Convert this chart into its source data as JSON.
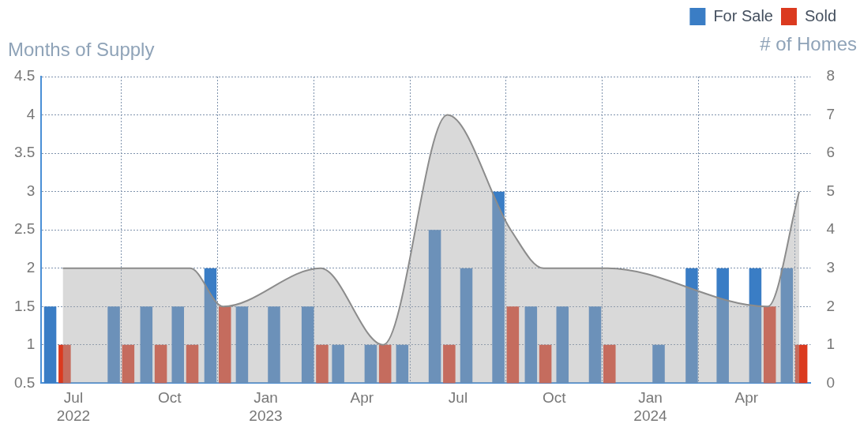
{
  "chart_data": {
    "type": "bar",
    "x": [
      "2022-06-16",
      "2022-07-16",
      "2022-08-16",
      "2022-09-16",
      "2022-10-16",
      "2022-11-16",
      "2022-12-16",
      "2023-01-16",
      "2023-02-16",
      "2023-03-16",
      "2023-04-16",
      "2023-05-16",
      "2023-06-16",
      "2023-07-16",
      "2023-08-16",
      "2023-09-16",
      "2023-10-16",
      "2023-11-16",
      "2023-12-16",
      "2024-01-16",
      "2024-02-16",
      "2024-03-16",
      "2024-04-16",
      "2024-05-16"
    ],
    "series": [
      {
        "name": "For Sale",
        "color": "#3a7dc5",
        "axis": "y2",
        "values": [
          2,
          0,
          2,
          2,
          2,
          3,
          2,
          2,
          2,
          1,
          1,
          1,
          4,
          3,
          5,
          2,
          2,
          2,
          0,
          1,
          3,
          3,
          3,
          3
        ]
      },
      {
        "name": "Sold",
        "color": "#db3a1f",
        "axis": "y2",
        "values": [
          1,
          0,
          1,
          1,
          1,
          2,
          0,
          0,
          1,
          0,
          1,
          0,
          1,
          0,
          2,
          1,
          0,
          1,
          0,
          0,
          0,
          0,
          2,
          1
        ]
      },
      {
        "type": "area",
        "color": "#8c8c8c",
        "x": [
          "2022-06-21",
          "2022-08-21",
          "2022-09-21",
          "2022-10-21",
          "2022-11-21",
          "2023-02-21",
          "2023-04-21",
          "2023-06-21",
          "2023-08-21",
          "2023-09-21",
          "2023-11-21",
          "2024-04-21",
          "2024-05-21"
        ],
        "values": [
          2,
          2,
          2,
          2,
          1.5,
          2,
          1,
          4,
          2.5,
          2,
          2,
          1.5,
          3
        ]
      }
    ],
    "xlim": [
      "2022-06",
      "2024-06"
    ],
    "xticks": [
      {
        "value": "2022-07",
        "label": "Jul\n2022"
      },
      {
        "value": "2022-10",
        "label": "Oct"
      },
      {
        "value": "2023-01",
        "label": "Jan\n2023"
      },
      {
        "value": "2023-04",
        "label": "Apr"
      },
      {
        "value": "2023-07",
        "label": "Jul"
      },
      {
        "value": "2023-10",
        "label": "Oct"
      },
      {
        "value": "2024-01",
        "label": "Jan\n2024"
      },
      {
        "value": "2024-04",
        "label": "Apr"
      }
    ],
    "ylim": [
      0.5,
      4.5
    ],
    "yticks": [
      0.5,
      1,
      1.5,
      2,
      2.5,
      3,
      3.5,
      4,
      4.5
    ],
    "y2lim": [
      0,
      8
    ],
    "y2ticks": [
      0,
      1,
      2,
      3,
      4,
      5,
      6,
      7,
      8
    ],
    "ylabel": "Months of Supply",
    "y2label": "# of Homes",
    "grid": true,
    "legend": "top right",
    "marker": "none"
  }
}
